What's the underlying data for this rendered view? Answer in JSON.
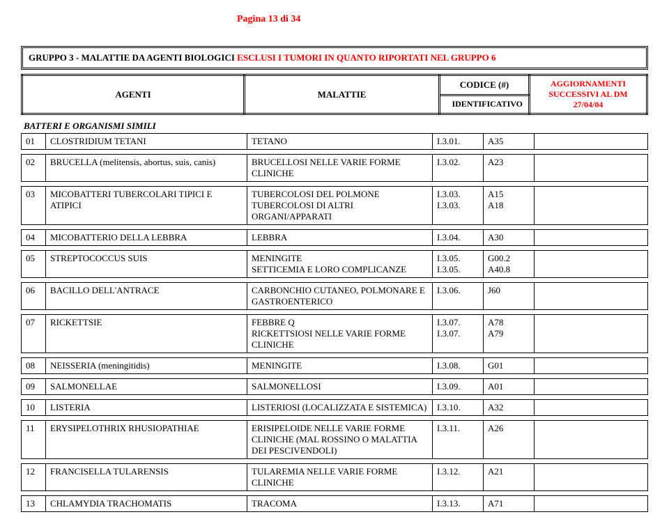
{
  "page_label": "Pagina 13 di 34",
  "group_title_black": "GRUPPO 3 - MALATTIE DA AGENTI BIOLOGICI ",
  "group_title_red": "ESCLUSI I TUMORI IN QUANTO RIPORTATI NEL GRUPPO 6",
  "headers": {
    "agenti": "AGENTI",
    "malattie": "MALATTIE",
    "codice": "CODICE (#)",
    "identificativo": "IDENTIFICATIVO",
    "aggiornamenti": "AGGIORNAMENTI SUCCESSIVI AL DM 27/04/04"
  },
  "section": "BATTERI E ORGANISMI SIMILI",
  "rows": [
    {
      "n": "01",
      "agent": "CLOSTRIDIUM TETANI",
      "diseases": [
        "TETANO"
      ],
      "codes": [
        "I.3.01."
      ],
      "exts": [
        "A35"
      ]
    },
    {
      "n": "02",
      "agent": "BRUCELLA (melitensis, abortus, suis, canis)",
      "diseases": [
        "BRUCELLOSI NELLE VARIE FORME CLINICHE"
      ],
      "codes": [
        "I.3.02."
      ],
      "exts": [
        "A23"
      ]
    },
    {
      "n": "03",
      "agent": "MICOBATTERI TUBERCOLARI TIPICI E ATIPICI",
      "diseases": [
        "TUBERCOLOSI DEL POLMONE",
        "TUBERCOLOSI DI ALTRI ORGANI/APPARATI"
      ],
      "codes": [
        "I.3.03.",
        "I.3.03."
      ],
      "exts": [
        "A15",
        "A18"
      ]
    },
    {
      "n": "04",
      "agent": "MICOBATTERIO DELLA LEBBRA",
      "diseases": [
        "LEBBRA"
      ],
      "codes": [
        "I.3.04."
      ],
      "exts": [
        "A30"
      ]
    },
    {
      "n": "05",
      "agent": "STREPTOCOCCUS SUIS",
      "diseases": [
        "MENINGITE",
        "SETTICEMIA E LORO COMPLICANZE"
      ],
      "codes": [
        "I.3.05.",
        "I.3.05."
      ],
      "exts": [
        "G00.2",
        "A40.8"
      ]
    },
    {
      "n": "06",
      "agent": "BACILLO DELL'ANTRACE",
      "diseases": [
        "CARBONCHIO CUTANEO, POLMONARE E GASTROENTERICO"
      ],
      "codes": [
        "I.3.06."
      ],
      "exts": [
        "J60"
      ]
    },
    {
      "n": "07",
      "agent": "RICKETTSIE",
      "diseases": [
        "FEBBRE Q",
        "RICKETTSIOSI NELLE VARIE FORME CLINICHE"
      ],
      "codes": [
        "I.3.07.",
        "I.3.07."
      ],
      "exts": [
        "A78",
        "A79"
      ]
    },
    {
      "n": "08",
      "agent": "NEISSERIA (meningitidis)",
      "diseases": [
        "MENINGITE"
      ],
      "codes": [
        "I.3.08."
      ],
      "exts": [
        "G01"
      ]
    },
    {
      "n": "09",
      "agent": "SALMONELLAE",
      "diseases": [
        "SALMONELLOSI"
      ],
      "codes": [
        "I.3.09."
      ],
      "exts": [
        "A01"
      ]
    },
    {
      "n": "10",
      "agent": "LISTERIA",
      "diseases": [
        "LISTERIOSI (LOCALIZZATA E SISTEMICA)"
      ],
      "codes": [
        "I.3.10."
      ],
      "exts": [
        "A32"
      ]
    },
    {
      "n": "11",
      "agent": "ERYSIPELOTHRIX RHUSIOPATHIAE",
      "diseases": [
        "ERISIPELOIDE NELLE VARIE FORME CLINICHE (MAL ROSSINO O MALATTIA DEI PESCIVENDOLI)"
      ],
      "codes": [
        "I.3.11."
      ],
      "exts": [
        "A26"
      ]
    },
    {
      "n": "12",
      "agent": "FRANCISELLA TULARENSIS",
      "diseases": [
        "TULAREMIA NELLE VARIE FORME CLINICHE"
      ],
      "codes": [
        "I.3.12."
      ],
      "exts": [
        "A21"
      ]
    },
    {
      "n": "13",
      "agent": "CHLAMYDIA TRACHOMATIS",
      "diseases": [
        "TRACOMA"
      ],
      "codes": [
        "I.3.13."
      ],
      "exts": [
        "A71"
      ]
    }
  ]
}
